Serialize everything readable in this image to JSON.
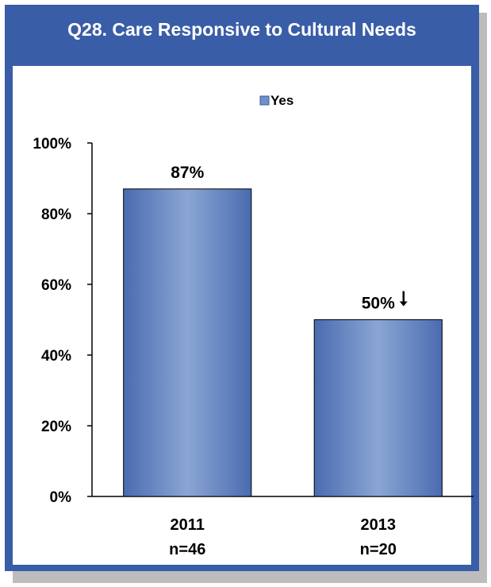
{
  "title": "Q28.  Care Responsive to Cultural Needs",
  "chart_data": {
    "type": "bar",
    "title": "Q28.  Care Responsive to Cultural Needs",
    "legend": {
      "entries": [
        "Yes"
      ],
      "placement": "top"
    },
    "categories": [
      "2011",
      "2013"
    ],
    "category_sublabels": [
      "n=46",
      "n=20"
    ],
    "series": [
      {
        "name": "Yes",
        "values": [
          87,
          50
        ],
        "data_labels": [
          "87%",
          "50%"
        ]
      }
    ],
    "annotations": [
      {
        "category": "2013",
        "symbol": "↓",
        "meaning": "down-arrow"
      }
    ],
    "y_ticks": [
      "0%",
      "20%",
      "40%",
      "60%",
      "80%",
      "100%"
    ],
    "ylim": [
      0,
      100
    ],
    "grid": false,
    "colors": {
      "bar_edge": "#4a6bb0",
      "bar_center": "#8ba6d4",
      "frame": "#3a5da8"
    }
  }
}
